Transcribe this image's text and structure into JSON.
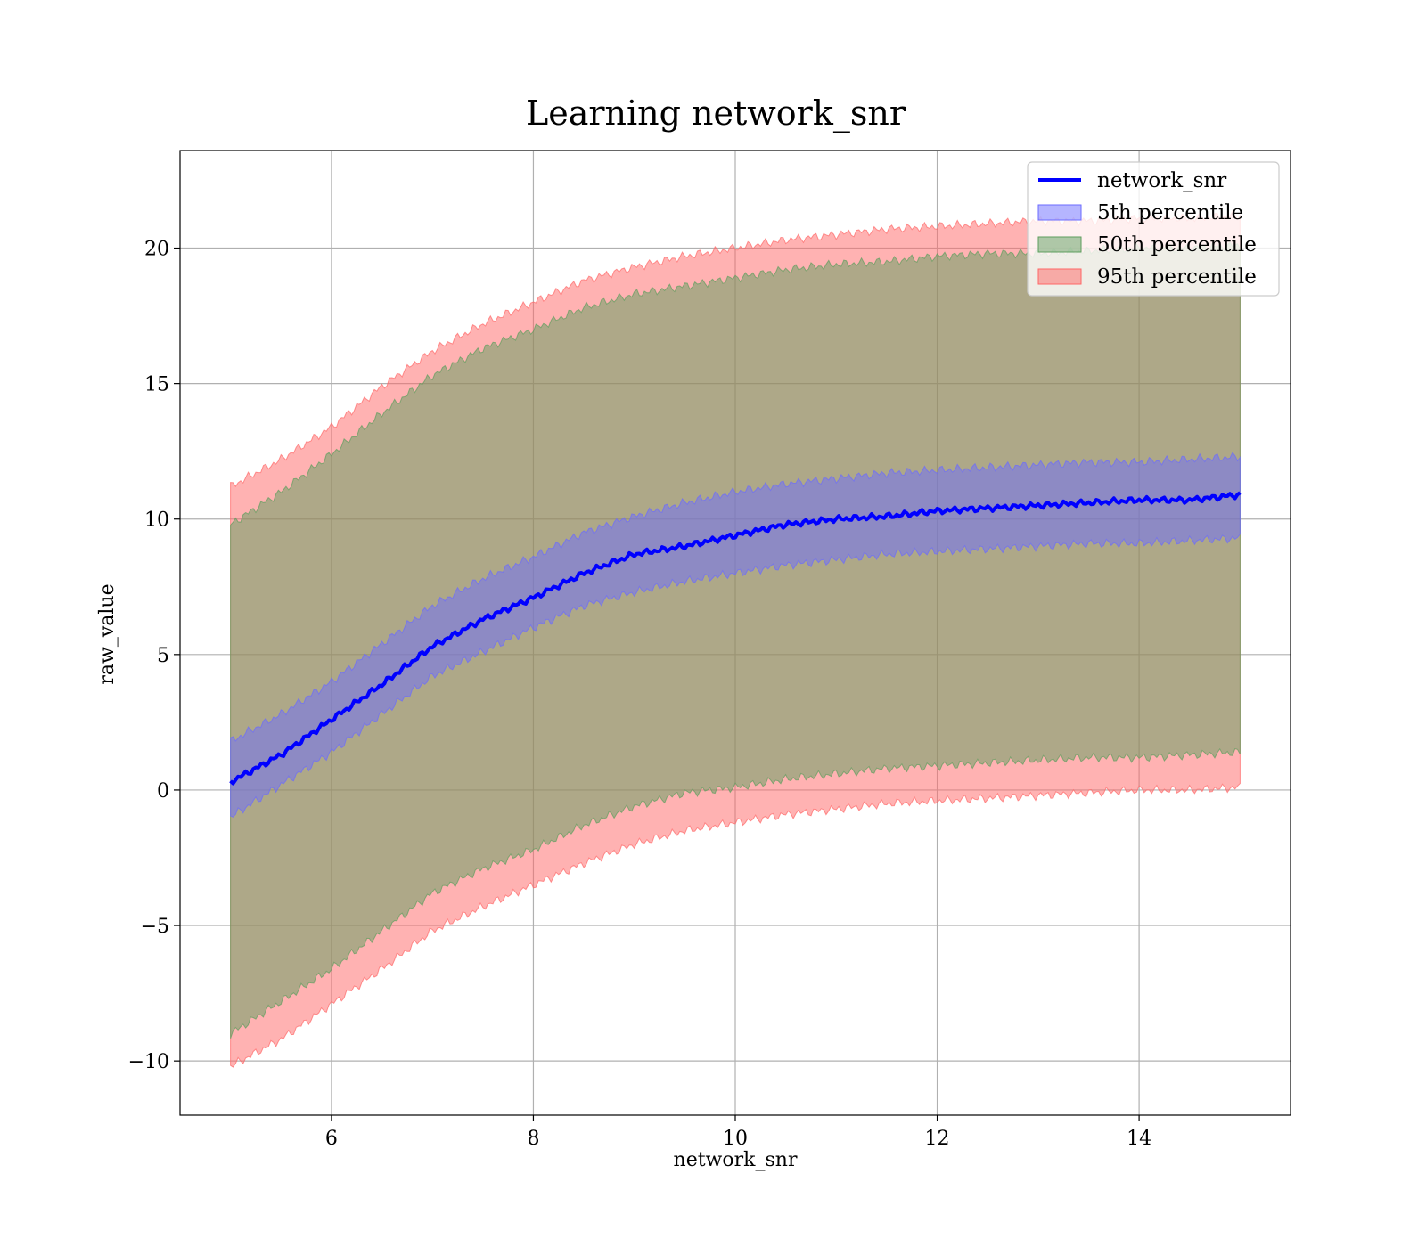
{
  "chart_data": {
    "type": "area",
    "title": "Learning network_snr",
    "xlabel": "network_snr",
    "ylabel": "raw_value",
    "xlim": [
      4.5,
      15.5
    ],
    "ylim": [
      -12,
      23.6
    ],
    "xticks": [
      6,
      8,
      10,
      12,
      14
    ],
    "yticks": [
      -10,
      -5,
      0,
      5,
      10,
      15,
      20
    ],
    "xtick_labels": [
      "6",
      "8",
      "10",
      "12",
      "14"
    ],
    "ytick_labels": [
      "−10",
      "−5",
      "0",
      "5",
      "10",
      "15",
      "20"
    ],
    "grid": true,
    "legend": {
      "placement": "top-right",
      "entries": [
        "network_snr",
        "5th percentile",
        "50th percentile",
        "95th percentile"
      ]
    },
    "x": [
      5,
      5.5,
      6,
      6.5,
      7,
      7.5,
      8,
      8.5,
      9,
      9.5,
      10,
      10.5,
      11,
      11.5,
      12,
      12.5,
      13,
      13.5,
      14,
      14.5,
      15
    ],
    "series": [
      {
        "name": "network_snr",
        "kind": "line",
        "color": "#0000ff",
        "values": [
          0.3,
          1.3,
          2.6,
          3.9,
          5.3,
          6.3,
          7.1,
          8.0,
          8.7,
          9.0,
          9.4,
          9.8,
          10.0,
          10.1,
          10.3,
          10.4,
          10.5,
          10.6,
          10.7,
          10.7,
          10.9
        ]
      },
      {
        "name": "5th percentile",
        "kind": "band",
        "color": "#6b6bff",
        "opacity": 0.5,
        "lower": [
          -1.0,
          0.2,
          1.4,
          2.8,
          4.2,
          5.1,
          6.0,
          6.8,
          7.3,
          7.7,
          8.0,
          8.3,
          8.5,
          8.7,
          8.8,
          8.9,
          9.0,
          9.1,
          9.1,
          9.2,
          9.3
        ],
        "upper": [
          1.8,
          2.8,
          4.0,
          5.4,
          6.8,
          7.8,
          8.6,
          9.5,
          10.1,
          10.6,
          11.0,
          11.3,
          11.5,
          11.7,
          11.8,
          11.9,
          12.0,
          12.1,
          12.1,
          12.2,
          12.3
        ]
      },
      {
        "name": "50th percentile",
        "kind": "band",
        "color": "#5e9e5e",
        "opacity": 0.5,
        "lower": [
          -9.0,
          -7.8,
          -6.6,
          -5.2,
          -3.8,
          -2.9,
          -2.2,
          -1.3,
          -0.6,
          -0.1,
          0.1,
          0.4,
          0.6,
          0.8,
          0.9,
          1.0,
          1.1,
          1.2,
          1.2,
          1.3,
          1.4
        ],
        "upper": [
          9.8,
          11.0,
          12.4,
          13.9,
          15.3,
          16.3,
          17.0,
          17.8,
          18.3,
          18.6,
          18.9,
          19.2,
          19.4,
          19.5,
          19.7,
          19.8,
          19.8,
          19.9,
          20.0,
          20.0,
          20.1
        ]
      },
      {
        "name": "95th percentile",
        "kind": "band",
        "color": "#ff6666",
        "opacity": 0.5,
        "lower": [
          -10.2,
          -9.2,
          -7.9,
          -6.6,
          -5.2,
          -4.3,
          -3.5,
          -2.7,
          -2.0,
          -1.5,
          -1.2,
          -0.9,
          -0.7,
          -0.5,
          -0.4,
          -0.3,
          -0.2,
          -0.1,
          0.0,
          0.0,
          0.1
        ],
        "upper": [
          11.2,
          12.2,
          13.4,
          14.9,
          16.2,
          17.2,
          18.0,
          18.8,
          19.3,
          19.7,
          20.0,
          20.3,
          20.5,
          20.7,
          20.8,
          20.9,
          21.0,
          21.0,
          21.1,
          21.1,
          21.2
        ]
      }
    ]
  }
}
